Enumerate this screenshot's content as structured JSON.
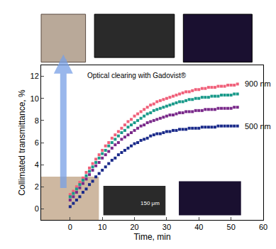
{
  "chart_data": {
    "type": "scatter",
    "x_label": "Time, min",
    "y_label": "Collimated transmittance, %",
    "xlim": [
      -9,
      60
    ],
    "xticks": [
      0,
      10,
      20,
      30,
      40,
      50,
      60
    ],
    "ylim": [
      -1,
      13
    ],
    "yticks": [
      0,
      2,
      4,
      6,
      8,
      10,
      12
    ],
    "grid": false,
    "marker": "square",
    "annotations": [
      "Optical clearing with Gadovist®",
      "150 μm"
    ],
    "x": [
      0,
      1,
      2,
      3,
      4,
      5,
      6,
      7,
      8,
      9,
      10,
      11,
      12,
      13,
      14,
      15,
      16,
      17,
      18,
      19,
      20,
      21,
      22,
      23,
      24,
      25,
      26,
      27,
      28,
      29,
      30,
      31,
      32,
      33,
      34,
      35,
      36,
      37,
      38,
      39,
      40,
      41,
      42,
      43,
      44,
      45,
      46,
      47,
      48,
      49,
      50,
      51,
      52
    ],
    "series": [
      {
        "name": "900 nm",
        "color": "#f0607a",
        "values": [
          1.3,
          1.6,
          2.0,
          2.4,
          2.8,
          3.3,
          3.7,
          4.1,
          4.5,
          4.9,
          5.3,
          5.7,
          6.0,
          6.4,
          6.7,
          7.0,
          7.3,
          7.6,
          7.9,
          8.1,
          8.4,
          8.6,
          8.8,
          9.0,
          9.2,
          9.4,
          9.5,
          9.7,
          9.8,
          9.9,
          10.0,
          10.1,
          10.2,
          10.3,
          10.4,
          10.5,
          10.6,
          10.6,
          10.7,
          10.8,
          10.8,
          10.9,
          10.9,
          11.0,
          11.0,
          11.0,
          11.1,
          11.1,
          11.1,
          11.2,
          11.2,
          11.2,
          11.3
        ]
      },
      {
        "color": "#1a9a8a",
        "values": [
          1.1,
          1.4,
          1.8,
          2.2,
          2.6,
          3.0,
          3.4,
          3.8,
          4.2,
          4.6,
          5.0,
          5.3,
          5.7,
          6.0,
          6.3,
          6.6,
          6.9,
          7.1,
          7.4,
          7.6,
          7.8,
          8.0,
          8.2,
          8.4,
          8.6,
          8.7,
          8.9,
          9.0,
          9.1,
          9.2,
          9.3,
          9.4,
          9.5,
          9.6,
          9.7,
          9.7,
          9.8,
          9.9,
          9.9,
          10.0,
          10.0,
          10.1,
          10.1,
          10.1,
          10.2,
          10.2,
          10.2,
          10.3,
          10.3,
          10.3,
          10.3,
          10.4,
          10.4
        ]
      },
      {
        "color": "#7a2a8a",
        "values": [
          0.8,
          1.1,
          1.5,
          1.9,
          2.3,
          2.7,
          3.1,
          3.5,
          3.9,
          4.2,
          4.6,
          4.9,
          5.2,
          5.5,
          5.8,
          6.0,
          6.3,
          6.5,
          6.7,
          6.9,
          7.1,
          7.3,
          7.5,
          7.6,
          7.8,
          7.9,
          8.0,
          8.1,
          8.2,
          8.3,
          8.4,
          8.5,
          8.5,
          8.6,
          8.7,
          8.7,
          8.8,
          8.8,
          8.8,
          8.9,
          8.9,
          8.9,
          9.0,
          9.0,
          9.0,
          9.0,
          9.1,
          9.1,
          9.1,
          9.1,
          9.1,
          9.2,
          9.2
        ]
      },
      {
        "name": "500 nm",
        "color": "#1a2a8a",
        "values": [
          0.2,
          0.5,
          0.8,
          1.1,
          1.5,
          1.8,
          2.2,
          2.5,
          2.9,
          3.2,
          3.5,
          3.8,
          4.1,
          4.4,
          4.6,
          4.9,
          5.1,
          5.3,
          5.5,
          5.7,
          5.9,
          6.0,
          6.2,
          6.3,
          6.4,
          6.6,
          6.7,
          6.8,
          6.8,
          6.9,
          7.0,
          7.0,
          7.1,
          7.1,
          7.2,
          7.2,
          7.2,
          7.3,
          7.3,
          7.3,
          7.3,
          7.4,
          7.4,
          7.4,
          7.4,
          7.4,
          7.5,
          7.5,
          7.5,
          7.5,
          7.5,
          7.5,
          7.5
        ]
      }
    ]
  }
}
